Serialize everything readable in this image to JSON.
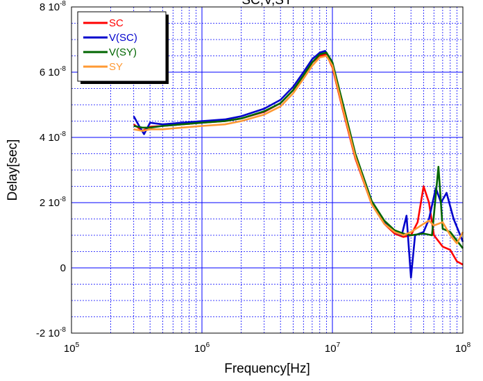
{
  "chart_data": {
    "type": "line",
    "title": "SC,V,SY",
    "xlabel": "Frequency[Hz]",
    "ylabel": "Delay[sec]",
    "x_scale": "log",
    "xlim": [
      100000,
      100000000
    ],
    "ylim": [
      -2e-08,
      8e-08
    ],
    "grid": true,
    "legend_position": "top-left",
    "x_ticks": [
      {
        "value": 100000,
        "base": "10",
        "exp": "5"
      },
      {
        "value": 1000000,
        "base": "10",
        "exp": "6"
      },
      {
        "value": 10000000,
        "base": "10",
        "exp": "7"
      },
      {
        "value": 100000000,
        "base": "10",
        "exp": "8"
      }
    ],
    "y_ticks": [
      {
        "value": 8e-08,
        "mant": "8 10",
        "exp": "-8"
      },
      {
        "value": 6e-08,
        "mant": "6 10",
        "exp": "-8"
      },
      {
        "value": 4e-08,
        "mant": "4 10",
        "exp": "-8"
      },
      {
        "value": 2e-08,
        "mant": "2 10",
        "exp": "-8"
      },
      {
        "value": 0,
        "mant": "0",
        "exp": ""
      },
      {
        "value": -2e-08,
        "mant": "-2 10",
        "exp": "-8"
      }
    ],
    "series": [
      {
        "name": "SC",
        "color": "#ff0000",
        "points": [
          [
            300000,
            4.4e-08
          ],
          [
            350000,
            4.2e-08
          ],
          [
            400000,
            4.33e-08
          ],
          [
            500000,
            4.35e-08
          ],
          [
            700000,
            4.4e-08
          ],
          [
            1000000,
            4.45e-08
          ],
          [
            1500000,
            4.5e-08
          ],
          [
            2000000,
            4.58e-08
          ],
          [
            3000000,
            4.78e-08
          ],
          [
            4000000,
            5.05e-08
          ],
          [
            5000000,
            5.45e-08
          ],
          [
            6000000,
            5.9e-08
          ],
          [
            7000000,
            6.3e-08
          ],
          [
            8000000,
            6.5e-08
          ],
          [
            9000000,
            6.55e-08
          ],
          [
            10000000,
            6.15e-08
          ],
          [
            12000000,
            4.85e-08
          ],
          [
            15000000,
            3.35e-08
          ],
          [
            20000000,
            1.95e-08
          ],
          [
            25000000,
            1.35e-08
          ],
          [
            30000000,
            1.05e-08
          ],
          [
            35000000,
            9.5e-09
          ],
          [
            40000000,
            1e-08
          ],
          [
            45000000,
            1.4e-08
          ],
          [
            50000000,
            2.5e-08
          ],
          [
            55000000,
            2e-08
          ],
          [
            60000000,
            1e-08
          ],
          [
            70000000,
            6.5e-09
          ],
          [
            80000000,
            5.5e-09
          ],
          [
            90000000,
            2e-09
          ],
          [
            100000000,
            1e-09
          ]
        ]
      },
      {
        "name": "V(SC)",
        "color": "#0000cc",
        "points": [
          [
            300000,
            4.65e-08
          ],
          [
            330000,
            4.35e-08
          ],
          [
            360000,
            4.1e-08
          ],
          [
            400000,
            4.45e-08
          ],
          [
            500000,
            4.4e-08
          ],
          [
            700000,
            4.45e-08
          ],
          [
            1000000,
            4.5e-08
          ],
          [
            1500000,
            4.55e-08
          ],
          [
            2000000,
            4.65e-08
          ],
          [
            3000000,
            4.88e-08
          ],
          [
            4000000,
            5.15e-08
          ],
          [
            5000000,
            5.55e-08
          ],
          [
            6000000,
            6e-08
          ],
          [
            7000000,
            6.4e-08
          ],
          [
            8000000,
            6.6e-08
          ],
          [
            8800000,
            6.65e-08
          ],
          [
            10000000,
            6.3e-08
          ],
          [
            12000000,
            5e-08
          ],
          [
            15000000,
            3.45e-08
          ],
          [
            20000000,
            2e-08
          ],
          [
            25000000,
            1.4e-08
          ],
          [
            30000000,
            1.1e-08
          ],
          [
            34000000,
            1e-08
          ],
          [
            37000000,
            1.6e-08
          ],
          [
            40000000,
            -3e-09
          ],
          [
            43000000,
            1e-08
          ],
          [
            50000000,
            1.1e-08
          ],
          [
            55000000,
            1.5e-08
          ],
          [
            62000000,
            2.45e-08
          ],
          [
            68000000,
            2e-08
          ],
          [
            75000000,
            2.3e-08
          ],
          [
            85000000,
            1.5e-08
          ],
          [
            100000000,
            8e-09
          ]
        ]
      },
      {
        "name": "V(SY)",
        "color": "#006600",
        "points": [
          [
            300000,
            4.35e-08
          ],
          [
            350000,
            4.3e-08
          ],
          [
            400000,
            4.3e-08
          ],
          [
            500000,
            4.35e-08
          ],
          [
            700000,
            4.4e-08
          ],
          [
            1000000,
            4.45e-08
          ],
          [
            1500000,
            4.5e-08
          ],
          [
            2000000,
            4.58e-08
          ],
          [
            3000000,
            4.8e-08
          ],
          [
            4000000,
            5.05e-08
          ],
          [
            5000000,
            5.45e-08
          ],
          [
            6000000,
            5.9e-08
          ],
          [
            7000000,
            6.3e-08
          ],
          [
            8000000,
            6.55e-08
          ],
          [
            9000000,
            6.6e-08
          ],
          [
            10000000,
            6.3e-08
          ],
          [
            12000000,
            5.05e-08
          ],
          [
            15000000,
            3.5e-08
          ],
          [
            20000000,
            2.05e-08
          ],
          [
            25000000,
            1.45e-08
          ],
          [
            30000000,
            1.15e-08
          ],
          [
            35000000,
            1.05e-08
          ],
          [
            40000000,
            1e-08
          ],
          [
            50000000,
            1.05e-08
          ],
          [
            58000000,
            1e-08
          ],
          [
            65000000,
            3.1e-08
          ],
          [
            70000000,
            1.2e-08
          ],
          [
            80000000,
            1.1e-08
          ],
          [
            100000000,
            6e-09
          ]
        ]
      },
      {
        "name": "SY",
        "color": "#ff9933",
        "points": [
          [
            300000,
            4.25e-08
          ],
          [
            350000,
            4.2e-08
          ],
          [
            400000,
            4.25e-08
          ],
          [
            500000,
            4.25e-08
          ],
          [
            700000,
            4.3e-08
          ],
          [
            1000000,
            4.35e-08
          ],
          [
            1500000,
            4.4e-08
          ],
          [
            2000000,
            4.5e-08
          ],
          [
            3000000,
            4.7e-08
          ],
          [
            4000000,
            4.95e-08
          ],
          [
            5000000,
            5.35e-08
          ],
          [
            6000000,
            5.8e-08
          ],
          [
            7000000,
            6.2e-08
          ],
          [
            8000000,
            6.45e-08
          ],
          [
            9000000,
            6.5e-08
          ],
          [
            10000000,
            6.2e-08
          ],
          [
            12000000,
            4.9e-08
          ],
          [
            15000000,
            3.4e-08
          ],
          [
            20000000,
            1.95e-08
          ],
          [
            25000000,
            1.35e-08
          ],
          [
            30000000,
            1.1e-08
          ],
          [
            35000000,
            1e-08
          ],
          [
            40000000,
            1.1e-08
          ],
          [
            50000000,
            1.35e-08
          ],
          [
            55000000,
            1.45e-08
          ],
          [
            60000000,
            1.3e-08
          ],
          [
            70000000,
            1.4e-08
          ],
          [
            80000000,
            1e-08
          ],
          [
            90000000,
            7.5e-09
          ],
          [
            100000000,
            1.1e-08
          ]
        ]
      }
    ]
  }
}
